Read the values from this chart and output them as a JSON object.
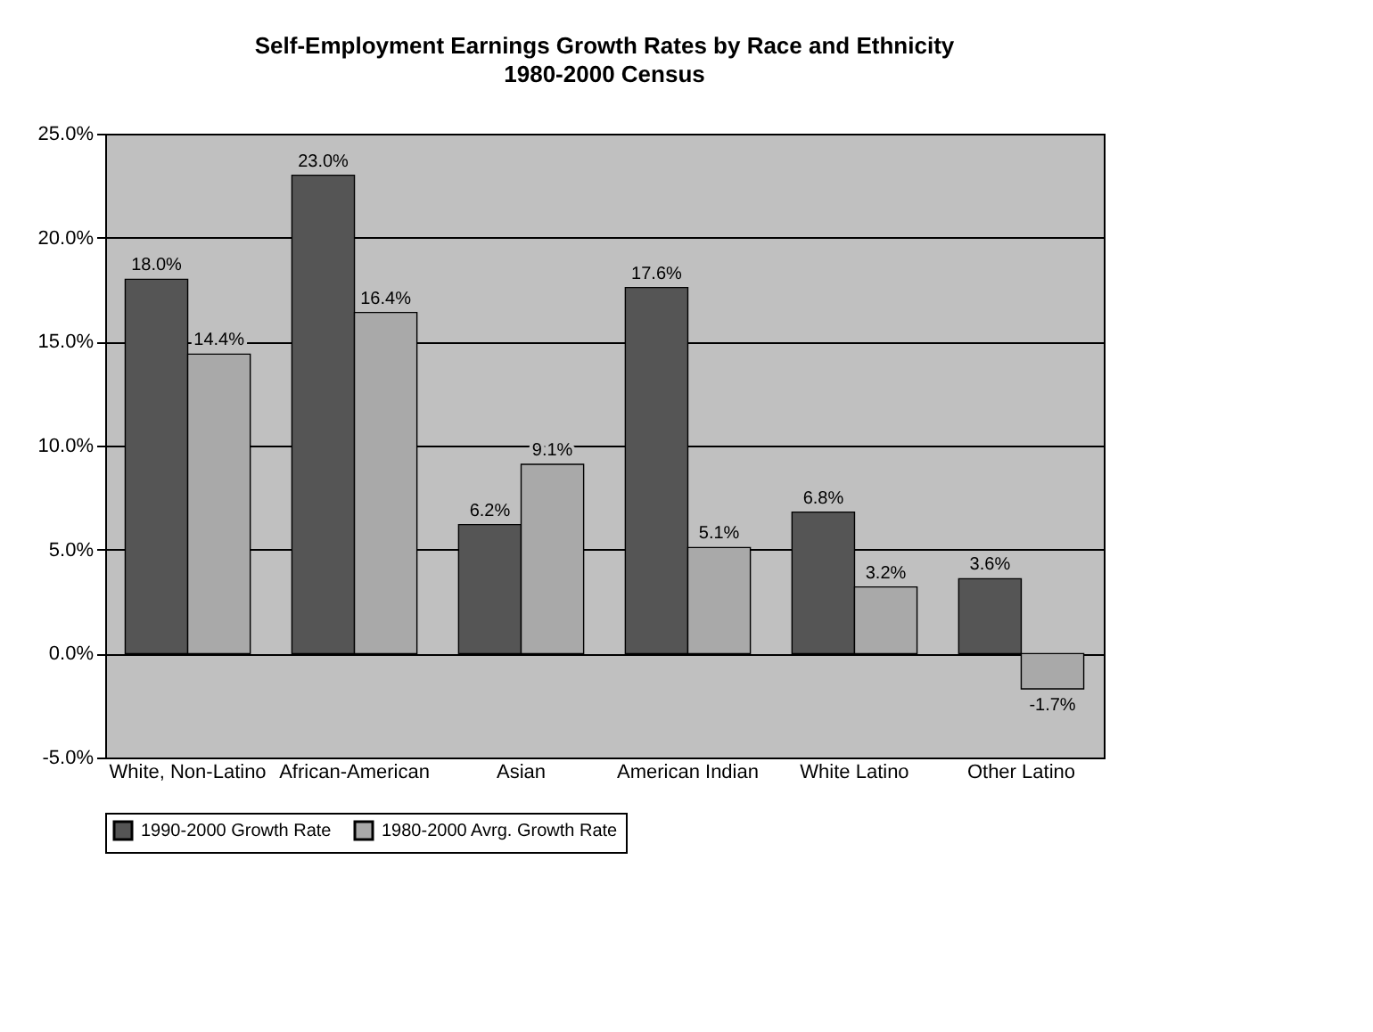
{
  "chart_data": {
    "type": "bar",
    "title": "Self-Employment Earnings Growth Rates by Race and Ethnicity",
    "subtitle": "1980-2000 Census",
    "categories": [
      "White, Non-Latino",
      "African-American",
      "Asian",
      "American Indian",
      "White Latino",
      "Other Latino"
    ],
    "series": [
      {
        "name": "1990-2000 Growth Rate",
        "color": "#555555",
        "values": [
          18.0,
          23.0,
          6.2,
          17.6,
          6.8,
          3.6
        ]
      },
      {
        "name": "1980-2000 Avrg. Growth Rate",
        "color": "#a9a9a9",
        "values": [
          14.4,
          16.4,
          9.1,
          5.1,
          3.2,
          -1.7
        ]
      }
    ],
    "ylim": [
      -5,
      25
    ],
    "yticks": [
      {
        "value": -5,
        "label": "-5.0%"
      },
      {
        "value": 0,
        "label": "0.0%"
      },
      {
        "value": 5,
        "label": "5.0%"
      },
      {
        "value": 10,
        "label": "10.0%"
      },
      {
        "value": 15,
        "label": "15.0%"
      },
      {
        "value": 20,
        "label": "20.0%"
      },
      {
        "value": 25,
        "label": "25.0%"
      }
    ],
    "value_labels": [
      [
        "18.0%",
        "23.0%",
        "6.2%",
        "17.6%",
        "6.8%",
        "3.6%"
      ],
      [
        "14.4%",
        "16.4%",
        "9.1%",
        "5.1%",
        "3.2%",
        "-1.7%"
      ]
    ],
    "grid": "y",
    "legend": "bottom"
  }
}
